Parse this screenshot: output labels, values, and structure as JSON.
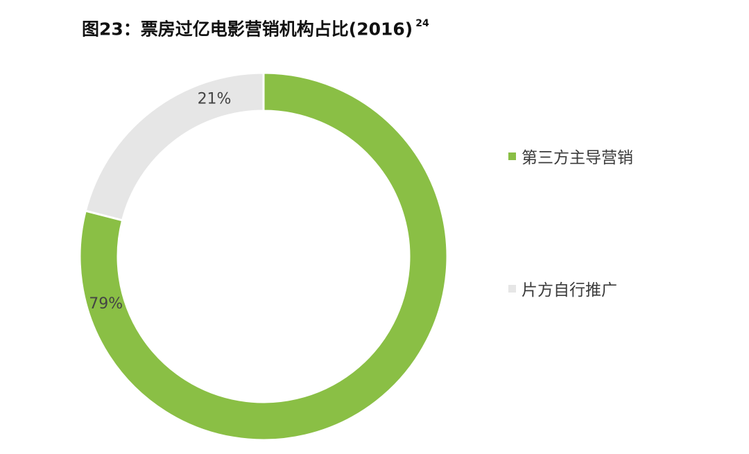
{
  "title": {
    "main": "图23：票房过亿电影营销机构占比(2016)",
    "superscript": "24"
  },
  "colors": {
    "green": "#8abf45",
    "gray": "#e6e6e6",
    "label": "#444444"
  },
  "chart_data": {
    "type": "pie",
    "style": "donut",
    "title": "图23：票房过亿电影营销机构占比(2016)",
    "legend_position": "right",
    "series": [
      {
        "name": "第三方主导营销",
        "value": 79,
        "label": "79%",
        "color": "#8abf45"
      },
      {
        "name": "片方自行推广",
        "value": 21,
        "label": "21%",
        "color": "#e6e6e6"
      }
    ]
  }
}
